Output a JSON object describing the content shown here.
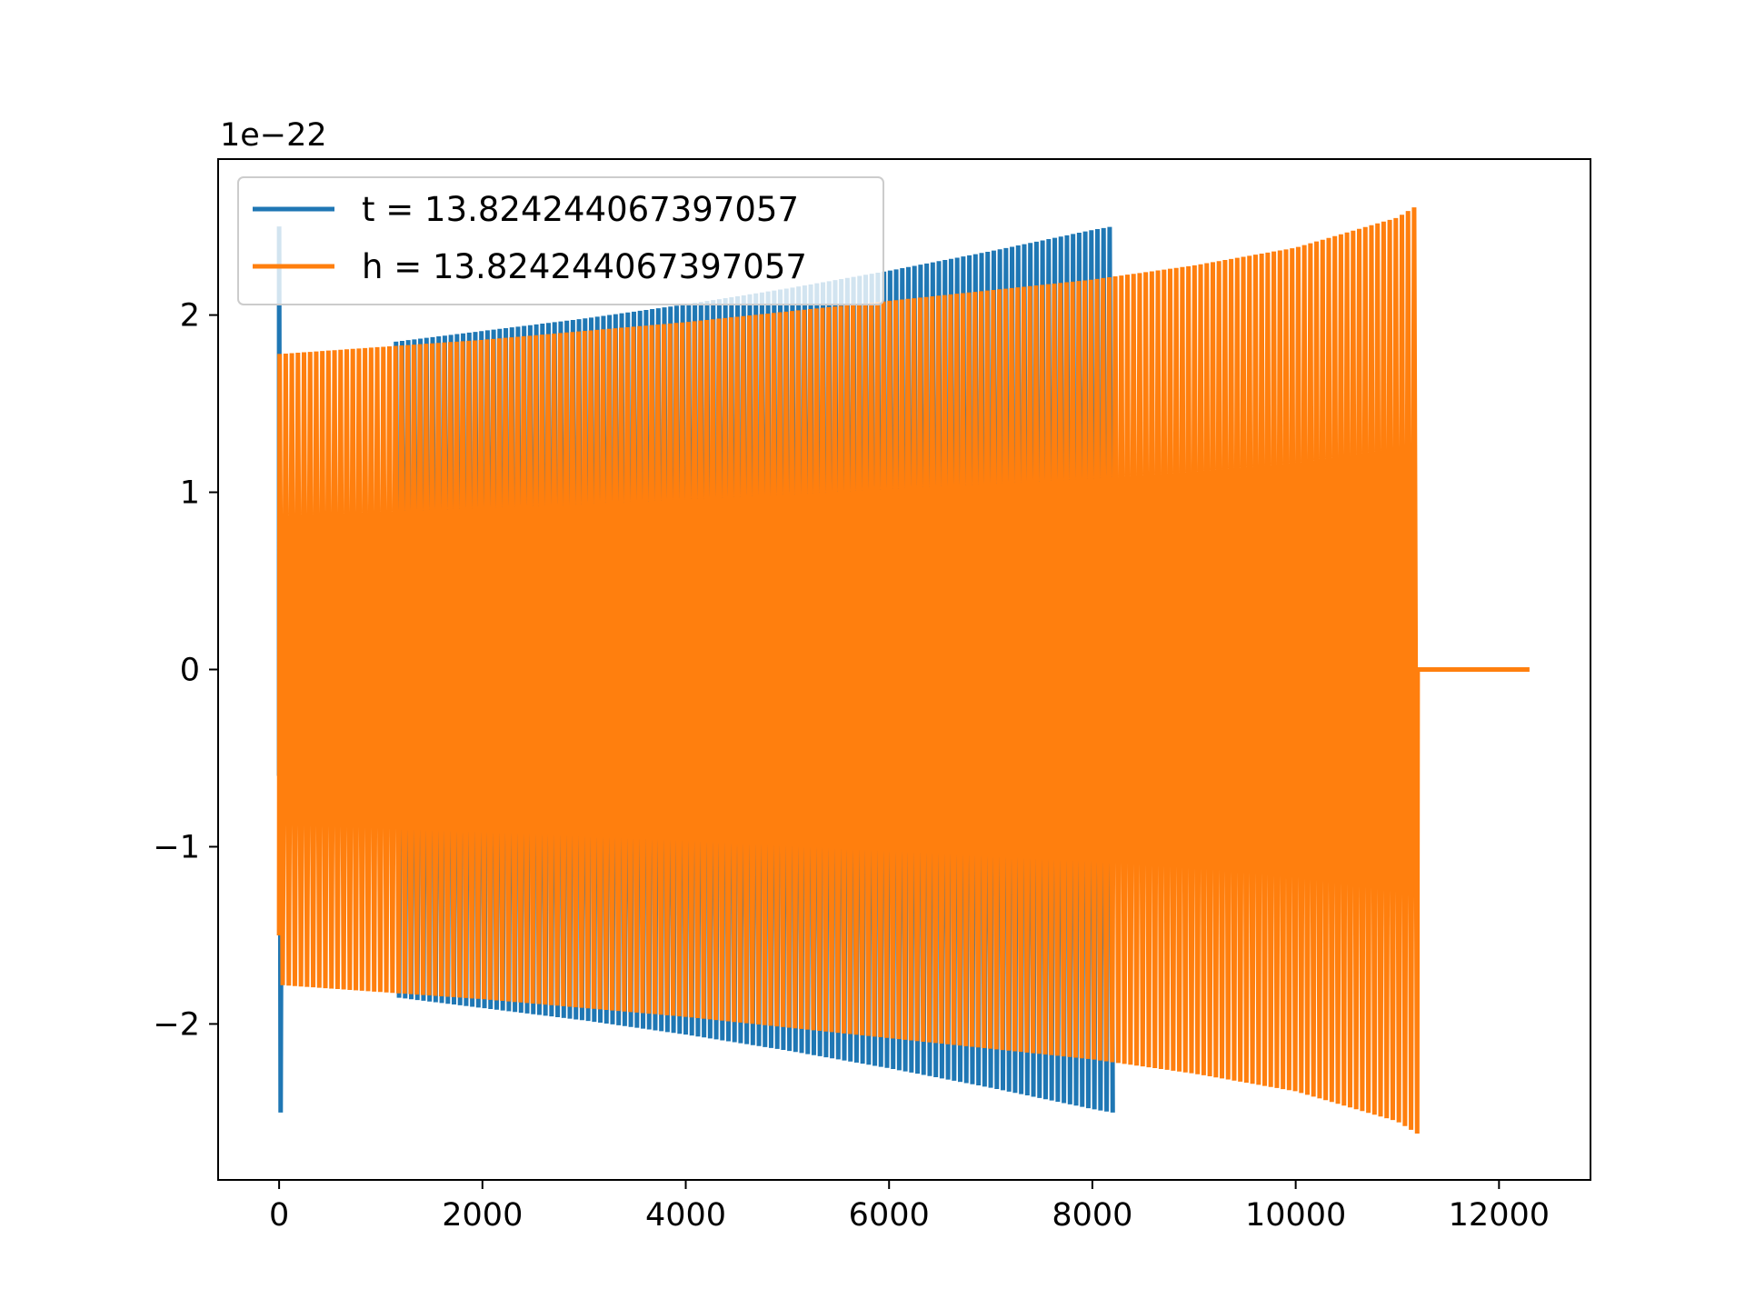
{
  "chart_data": {
    "type": "line",
    "title": "",
    "xlabel": "",
    "ylabel": "",
    "offset_text": "1e−22",
    "xlim": [
      -600,
      12900
    ],
    "ylim": [
      -2.88,
      2.88
    ],
    "y_scale_exponent": -22,
    "x_ticks": [
      0,
      2000,
      4000,
      6000,
      8000,
      10000,
      12000
    ],
    "x_tick_labels": [
      "0",
      "2000",
      "4000",
      "6000",
      "8000",
      "10000",
      "12000"
    ],
    "y_ticks": [
      -2,
      -1,
      0,
      1,
      2
    ],
    "y_tick_labels": [
      "−2",
      "−1",
      "0",
      "1",
      "2"
    ],
    "grid": false,
    "legend_position": "top-left",
    "series": [
      {
        "name": "t = 13.824244067397057",
        "color": "#1f77b4",
        "description": "oscillating waveform, spike to ±2.5 near x=0, then amplitude growing from ~1.85 at x≈1150 to ~2.5 at x≈8200, then ends",
        "start_x": 0,
        "end_x": 8200,
        "envelope_x": [
          0,
          30,
          1150,
          2000,
          3000,
          4000,
          5000,
          6000,
          7000,
          8000,
          8200
        ],
        "envelope_amp": [
          2.5,
          0.5,
          1.85,
          1.91,
          1.98,
          2.06,
          2.15,
          2.25,
          2.36,
          2.48,
          2.5
        ]
      },
      {
        "name": "h = 13.824244067397057",
        "color": "#ff7f0e",
        "description": "oscillating waveform, amplitude ~1.78 from x≈0 growing to ~2.62 at x≈11200, then flat at 0 until x≈12300",
        "start_x": 0,
        "end_x": 12300,
        "envelope_x": [
          0,
          1000,
          2000,
          4000,
          6000,
          8000,
          9000,
          10000,
          11000,
          11200
        ],
        "envelope_amp": [
          1.78,
          1.82,
          1.86,
          1.96,
          2.08,
          2.2,
          2.28,
          2.38,
          2.55,
          2.62
        ],
        "flat_after_x": 11200,
        "flat_value": 0
      }
    ]
  },
  "colors": {
    "series_blue": "#1f77b4",
    "series_orange": "#ff7f0e",
    "axes": "#000000",
    "background": "#ffffff"
  }
}
